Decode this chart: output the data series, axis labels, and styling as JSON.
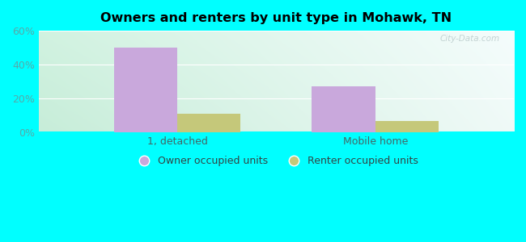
{
  "title": "Owners and renters by unit type in Mohawk, TN",
  "categories": [
    "1, detached",
    "Mobile home"
  ],
  "owner_values": [
    50,
    27
  ],
  "renter_values": [
    11,
    7
  ],
  "owner_color": "#c9a8dc",
  "renter_color": "#c5c87a",
  "ylim": [
    0,
    60
  ],
  "yticks": [
    0,
    20,
    40,
    60
  ],
  "ytick_labels": [
    "0%",
    "20%",
    "40%",
    "60%"
  ],
  "outer_bg": "#00ffff",
  "bar_width": 0.32,
  "watermark": "City-Data.com",
  "legend_labels": [
    "Owner occupied units",
    "Renter occupied units"
  ],
  "tick_color": "#55aaaa",
  "grid_color": "#ddeeee",
  "bg_topleft": [
    0.82,
    0.95,
    0.88
  ],
  "bg_topright": [
    0.96,
    0.99,
    0.99
  ],
  "bg_botleft": [
    0.78,
    0.93,
    0.85
  ],
  "bg_botright": [
    0.94,
    0.98,
    0.97
  ]
}
